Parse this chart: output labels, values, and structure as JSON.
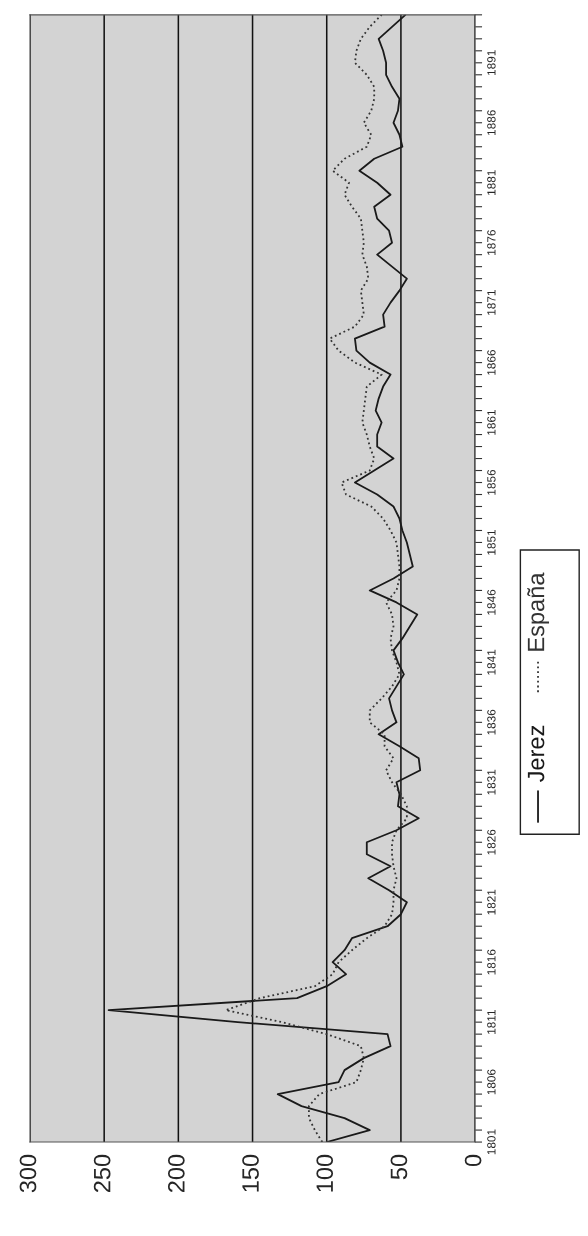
{
  "chart_data": {
    "type": "line",
    "x": [
      1801,
      1802,
      1803,
      1804,
      1805,
      1806,
      1807,
      1808,
      1809,
      1810,
      1811,
      1812,
      1813,
      1814,
      1815,
      1816,
      1817,
      1818,
      1819,
      1820,
      1821,
      1822,
      1823,
      1824,
      1825,
      1826,
      1827,
      1828,
      1829,
      1830,
      1831,
      1832,
      1833,
      1834,
      1835,
      1836,
      1837,
      1838,
      1839,
      1840,
      1841,
      1842,
      1843,
      1844,
      1845,
      1846,
      1847,
      1848,
      1849,
      1850,
      1851,
      1852,
      1853,
      1854,
      1855,
      1856,
      1857,
      1858,
      1859,
      1860,
      1861,
      1862,
      1863,
      1864,
      1865,
      1866,
      1867,
      1868,
      1869,
      1870,
      1871,
      1872,
      1873,
      1874,
      1875,
      1876,
      1877,
      1878,
      1879,
      1880,
      1881,
      1882,
      1883,
      1884,
      1885,
      1886,
      1887,
      1888,
      1889,
      1890,
      1891,
      1892,
      1893,
      1894,
      1895
    ],
    "series": [
      {
        "name": "Jerez",
        "color": "#1a1a1a",
        "line_style": "solid",
        "values": [
          100,
          71,
          88,
          117,
          133,
          92,
          88,
          75,
          57,
          59,
          160,
          247,
          120,
          100,
          87,
          96,
          88,
          83,
          59,
          50,
          46,
          58,
          72,
          57,
          73,
          73,
          53,
          38,
          52,
          51,
          53,
          37,
          38,
          51,
          65,
          53,
          56,
          58,
          53,
          48,
          52,
          55,
          49,
          44,
          39,
          53,
          71,
          55,
          42,
          44,
          46,
          49,
          51,
          55,
          66,
          81,
          68,
          55,
          66,
          66,
          63,
          67,
          65,
          62,
          57,
          71,
          80,
          81,
          61,
          62,
          57,
          51,
          46,
          56,
          66,
          56,
          58,
          66,
          68,
          57,
          66,
          78,
          68,
          49,
          51,
          55,
          52,
          51,
          56,
          60,
          60,
          62,
          65,
          56,
          47
        ]
      },
      {
        "name": "España",
        "color": "#333333",
        "line_style": "dotted",
        "values": [
          103,
          108,
          112,
          112,
          105,
          80,
          77,
          75,
          77,
          100,
          130,
          168,
          145,
          108,
          96,
          92,
          83,
          73,
          61,
          56,
          55,
          55,
          53,
          55,
          56,
          56,
          53,
          46,
          46,
          50,
          56,
          60,
          55,
          61,
          61,
          71,
          71,
          63,
          56,
          51,
          53,
          56,
          57,
          55,
          56,
          60,
          53,
          51,
          51,
          52,
          53,
          57,
          62,
          70,
          87,
          90,
          71,
          68,
          71,
          73,
          76,
          75,
          74,
          73,
          63,
          81,
          92,
          98,
          81,
          75,
          76,
          77,
          72,
          73,
          76,
          75,
          76,
          77,
          83,
          88,
          85,
          96,
          88,
          73,
          70,
          75,
          70,
          68,
          68,
          73,
          81,
          80,
          77,
          71,
          63
        ]
      }
    ],
    "orientation": "horizontal",
    "ylim": [
      1801,
      1895
    ],
    "yticks": [
      1801,
      {
        "value": 1802,
        "label": null
      },
      {
        "value": 1803,
        "label": null
      },
      {
        "value": 1804,
        "label": null
      },
      {
        "value": 1805,
        "label": null
      },
      1806,
      {
        "value": 1807,
        "label": null
      },
      {
        "value": 1808,
        "label": null
      },
      {
        "value": 1809,
        "label": null
      },
      {
        "value": 1810,
        "label": null
      },
      1811,
      {
        "value": 1812,
        "label": null
      },
      {
        "value": 1813,
        "label": null
      },
      {
        "value": 1814,
        "label": null
      },
      {
        "value": 1815,
        "label": null
      },
      1816,
      {
        "value": 1817,
        "label": null
      },
      {
        "value": 1818,
        "label": null
      },
      {
        "value": 1819,
        "label": null
      },
      {
        "value": 1820,
        "label": null
      },
      1821,
      {
        "value": 1822,
        "label": null
      },
      {
        "value": 1823,
        "label": null
      },
      {
        "value": 1824,
        "label": null
      },
      {
        "value": 1825,
        "label": null
      },
      1826,
      {
        "value": 1827,
        "label": null
      },
      {
        "value": 1828,
        "label": null
      },
      {
        "value": 1829,
        "label": null
      },
      {
        "value": 1830,
        "label": null
      },
      1831,
      {
        "value": 1832,
        "label": null
      },
      {
        "value": 1833,
        "label": null
      },
      {
        "value": 1834,
        "label": null
      },
      {
        "value": 1835,
        "label": null
      },
      1836,
      {
        "value": 1837,
        "label": null
      },
      {
        "value": 1838,
        "label": null
      },
      {
        "value": 1839,
        "label": null
      },
      {
        "value": 1840,
        "label": null
      },
      1841,
      {
        "value": 1842,
        "label": null
      },
      {
        "value": 1843,
        "label": null
      },
      {
        "value": 1844,
        "label": null
      },
      {
        "value": 1845,
        "label": null
      },
      1846,
      {
        "value": 1847,
        "label": null
      },
      {
        "value": 1848,
        "label": null
      },
      {
        "value": 1849,
        "label": null
      },
      {
        "value": 1850,
        "label": null
      },
      1851,
      {
        "value": 1852,
        "label": null
      },
      {
        "value": 1853,
        "label": null
      },
      {
        "value": 1854,
        "label": null
      },
      {
        "value": 1855,
        "label": null
      },
      1856,
      {
        "value": 1857,
        "label": null
      },
      {
        "value": 1858,
        "label": null
      },
      {
        "value": 1859,
        "label": null
      },
      {
        "value": 1860,
        "label": null
      },
      1861,
      {
        "value": 1862,
        "label": null
      },
      {
        "value": 1863,
        "label": null
      },
      {
        "value": 1864,
        "label": null
      },
      {
        "value": 1865,
        "label": null
      },
      1866,
      {
        "value": 1867,
        "label": null
      },
      {
        "value": 1868,
        "label": null
      },
      {
        "value": 1869,
        "label": null
      },
      {
        "value": 1870,
        "label": null
      },
      1871,
      {
        "value": 1872,
        "label": null
      },
      {
        "value": 1873,
        "label": null
      },
      {
        "value": 1874,
        "label": null
      },
      {
        "value": 1875,
        "label": null
      },
      1876,
      {
        "value": 1877,
        "label": null
      },
      {
        "value": 1878,
        "label": null
      },
      {
        "value": 1879,
        "label": null
      },
      {
        "value": 1880,
        "label": null
      },
      1881,
      {
        "value": 1882,
        "label": null
      },
      {
        "value": 1883,
        "label": null
      },
      {
        "value": 1884,
        "label": null
      },
      {
        "value": 1885,
        "label": null
      },
      1886,
      {
        "value": 1887,
        "label": null
      },
      {
        "value": 1888,
        "label": null
      },
      {
        "value": 1889,
        "label": null
      },
      {
        "value": 1890,
        "label": null
      },
      1891,
      {
        "value": 1892,
        "label": null
      },
      {
        "value": 1893,
        "label": null
      },
      {
        "value": 1894,
        "label": null
      },
      {
        "value": 1895,
        "label": null
      }
    ],
    "xlim": [
      300,
      0
    ],
    "xticks": [
      0,
      50,
      100,
      150,
      200,
      250,
      300
    ],
    "grid": "x",
    "legend": "right"
  }
}
